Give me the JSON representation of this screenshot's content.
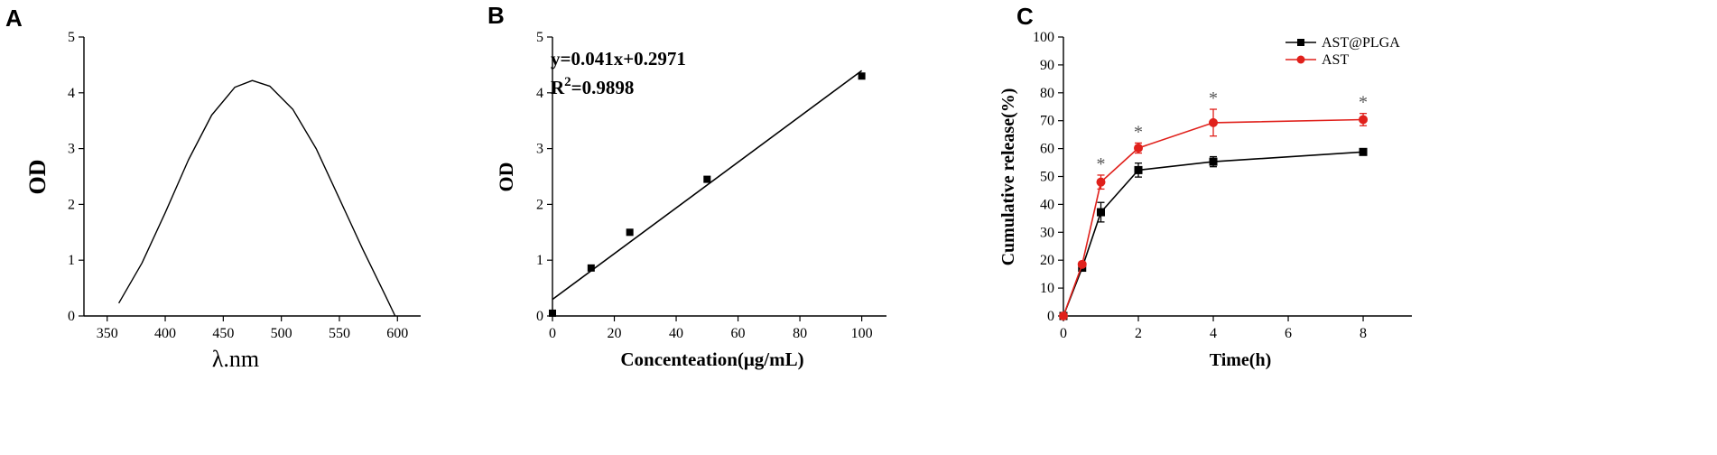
{
  "panels": [
    {
      "letter": "A",
      "chart_data": {
        "type": "line",
        "xlabel": "λ.nm",
        "ylabel": "OD",
        "xlim": [
          330,
          620
        ],
        "ylim": [
          0,
          5
        ],
        "xticks": [
          350,
          400,
          450,
          500,
          550,
          600
        ],
        "yticks": [
          0,
          1,
          2,
          3,
          4,
          5
        ],
        "series": [
          {
            "x": [
              360,
              380,
              400,
              420,
              440,
              460,
              475,
              490,
              510,
              530,
              550,
              570,
              590,
              598
            ],
            "y": [
              0.23,
              0.95,
              1.85,
              2.8,
              3.6,
              4.1,
              4.22,
              4.12,
              3.7,
              3.0,
              2.1,
              1.2,
              0.35,
              0.0
            ]
          }
        ]
      }
    },
    {
      "letter": "B",
      "chart_data": {
        "type": "scatter",
        "xlabel": "Concenteation(μg/mL)",
        "ylabel": "OD",
        "xlim": [
          0,
          108
        ],
        "ylim": [
          0,
          5
        ],
        "xticks": [
          0,
          20,
          40,
          60,
          80,
          100
        ],
        "yticks": [
          0,
          1,
          2,
          3,
          4,
          5
        ],
        "equation": "y=0.041x+0.2971",
        "r2_prefix": "R",
        "r2_sup": "2",
        "r2_value": "=0.9898",
        "points": {
          "x": [
            0,
            12.5,
            25,
            50,
            100
          ],
          "y": [
            0.05,
            0.86,
            1.5,
            2.45,
            4.3
          ]
        },
        "fit": {
          "slope": 0.041,
          "intercept": 0.2971,
          "x_range": [
            0,
            100
          ]
        }
      }
    },
    {
      "letter": "C",
      "chart_data": {
        "type": "line",
        "xlabel": "Time(h)",
        "ylabel": "Cumulative release(%)",
        "xlim": [
          0,
          9.3
        ],
        "ylim": [
          0,
          100
        ],
        "xticks": [
          0,
          2,
          4,
          6,
          8
        ],
        "yticks": [
          0,
          10,
          20,
          30,
          40,
          50,
          60,
          70,
          80,
          90,
          100
        ],
        "legend_position": "top-right",
        "x": [
          0,
          0.5,
          1,
          2,
          4,
          8
        ],
        "series": [
          {
            "name": "AST@PLGA",
            "color": "#000000",
            "marker": "square",
            "values": [
              0,
              17.3,
              37.2,
              52.3,
              55.3,
              58.8
            ],
            "errors": [
              0,
              0.8,
              3.5,
              2.5,
              1.8,
              0.9
            ]
          },
          {
            "name": "AST",
            "color": "#e0201b",
            "marker": "circle",
            "values": [
              0,
              18.5,
              48.0,
              60.2,
              69.3,
              70.4
            ],
            "errors": [
              0,
              0.8,
              2.5,
              1.8,
              4.8,
              2.2
            ]
          }
        ],
        "significance_marker": "*",
        "significance_x": [
          1,
          2,
          4,
          8
        ]
      }
    }
  ]
}
